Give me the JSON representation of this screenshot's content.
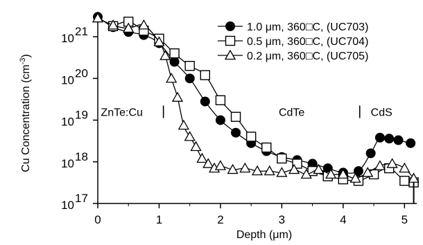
{
  "chart_data": {
    "type": "line",
    "xlabel": "Depth (μm)",
    "ylabel": "Cu Concentration (cm-3)",
    "ylabel_base": "Cu Concentration (cm",
    "ylabel_exp": "-3",
    "ylabel_close": ")",
    "xlim": [
      0,
      5.2
    ],
    "ylim_log10": [
      17,
      21.6
    ],
    "y_scale": "log",
    "x_ticks": [
      0,
      1,
      2,
      3,
      4,
      5
    ],
    "x_tick_labels": [
      "0",
      "1",
      "2",
      "3",
      "4",
      "5"
    ],
    "y_ticks_log10": [
      17,
      18,
      19,
      20,
      21
    ],
    "y_tick_labels": [
      {
        "base": "10",
        "exp": "17"
      },
      {
        "base": "10",
        "exp": "18"
      },
      {
        "base": "10",
        "exp": "19"
      },
      {
        "base": "10",
        "exp": "20"
      },
      {
        "base": "10",
        "exp": "21"
      }
    ],
    "legend_position": "top-right",
    "annotations": [
      {
        "text": "ZnTe:Cu",
        "x": 0.05,
        "y_log10": 19.2
      },
      {
        "text": "CdTe",
        "x": 2.95,
        "y_log10": 19.2
      },
      {
        "text": "CdS",
        "x": 4.45,
        "y_log10": 19.2
      }
    ],
    "boundary_markers": [
      {
        "x": 1.07,
        "y_log10": 19.2
      },
      {
        "x": 4.27,
        "y_log10": 19.2
      }
    ],
    "series": [
      {
        "name": "1.0 μm, 360□C, (UC703)",
        "marker": "circle",
        "x": [
          0.0,
          0.25,
          0.5,
          0.75,
          1.0,
          1.25,
          1.5,
          1.75,
          2.0,
          2.25,
          2.5,
          2.75,
          3.0,
          3.25,
          3.5,
          3.75,
          4.0,
          4.25,
          4.45,
          4.6,
          4.75,
          4.9,
          5.1
        ],
        "y": [
          3e+21,
          1.7e+21,
          1.3e+21,
          1.1e+21,
          7e+20,
          2.5e+20,
          1e+20,
          2.8e+19,
          1e+19,
          5e+18,
          2.8e+18,
          1.8e+18,
          1.3e+18,
          1.1e+18,
          9e+17,
          7e+17,
          5.5e+17,
          6e+17,
          1.6e+18,
          3.8e+18,
          3.6e+18,
          3.3e+18,
          2.8e+18
        ]
      },
      {
        "name": "0.5 μm, 360□C, (UC704)",
        "marker": "square",
        "x": [
          0.25,
          0.5,
          0.75,
          1.0,
          1.25,
          1.5,
          1.75,
          2.0,
          2.25,
          2.5,
          2.75,
          3.0,
          3.25,
          3.5,
          3.75,
          4.0,
          4.25,
          4.5,
          4.75,
          5.0,
          5.15
        ],
        "y": [
          1.8e+21,
          2.3e+21,
          1.4e+21,
          9e+20,
          4e+20,
          2e+20,
          1.2e+20,
          3e+19,
          1.2e+19,
          4e+18,
          2.2e+18,
          1.2e+18,
          9e+17,
          6e+17,
          4.5e+17,
          3.8e+17,
          3.5e+17,
          5e+17,
          7e+17,
          3.5e+17,
          3.2e+17
        ]
      },
      {
        "name": "0.2 μm, 360□C, (UC705)",
        "marker": "triangle",
        "x": [
          0.0,
          0.25,
          0.5,
          0.75,
          1.0,
          1.1,
          1.2,
          1.3,
          1.4,
          1.5,
          1.6,
          1.7,
          1.8,
          1.9,
          2.0,
          2.2,
          2.4,
          2.6,
          2.8,
          3.0,
          3.2,
          3.4,
          3.6,
          3.8,
          4.0,
          4.2,
          4.4,
          4.6,
          4.8,
          5.0,
          5.15
        ],
        "y": [
          2.8e+21,
          1.9e+21,
          1.6e+21,
          1.9e+21,
          7.5e+20,
          3.5e+20,
          1e+20,
          3.5e+19,
          7.5e+18,
          4e+18,
          2.3e+18,
          1.2e+18,
          9e+17,
          7e+17,
          8e+17,
          6.5e+17,
          7e+17,
          6e+17,
          6e+17,
          5.5e+17,
          6.5e+17,
          5e+17,
          6.5e+17,
          5e+17,
          5e+17,
          4e+17,
          5.5e+17,
          8e+17,
          9e+17,
          7e+17,
          4e+17
        ]
      }
    ]
  }
}
